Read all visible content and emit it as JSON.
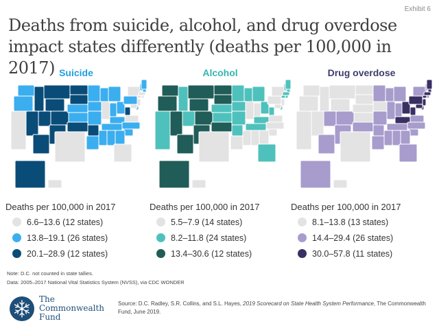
{
  "exhibit_label": "Exhibit 6",
  "title": "Deaths from suicide, alcohol, and drug overdose impact states differently (deaths per 100,000 in 2017)",
  "panels": [
    {
      "title": "Suicide",
      "title_color": "#1fa0dc",
      "colors": {
        "low": "#e3e3e3",
        "mid": "#3baeef",
        "high": "#0a4c78"
      },
      "legend_heading": "Deaths per 100,000 in 2017",
      "legend": [
        "6.6–13.6 (12 states)",
        "13.8–19.1 (26 states)",
        "20.1–28.9 (12 states)"
      ]
    },
    {
      "title": "Alcohol",
      "title_color": "#35b5b0",
      "colors": {
        "low": "#e3e3e3",
        "mid": "#4fc1bc",
        "high": "#205c58"
      },
      "legend_heading": "Deaths per 100,000 in 2017",
      "legend": [
        "5.5–7.9 (14 states)",
        "8.2–11.8 (24 states)",
        "13.4–30.6 (12 states)"
      ]
    },
    {
      "title": "Drug overdose",
      "title_color": "#3d3c6b",
      "colors": {
        "low": "#e3e3e3",
        "mid": "#a79ccc",
        "high": "#3a2f63"
      },
      "legend_heading": "Deaths per 100,000 in 2017",
      "legend": [
        "8.1–13.8 (13 states)",
        "14.4–29.4 (26 states)",
        "30.0–57.8 (11 states)"
      ]
    }
  ],
  "notes": {
    "line1": "Note: D.C. not counted in state tallies.",
    "line2": "Data: 2005–2017 National Vital Statistics System (NVSS), via CDC WONDER"
  },
  "logo": {
    "line1": "The",
    "line2": "Commonwealth",
    "line3": "Fund"
  },
  "source": {
    "prefix": "Source: D.C. Radley, S.R. Collins, and S.L. Hayes, ",
    "italic": "2019 Scorecard on State Health System Performance",
    "suffix": ", The Commonwealth Fund, June 2019."
  }
}
